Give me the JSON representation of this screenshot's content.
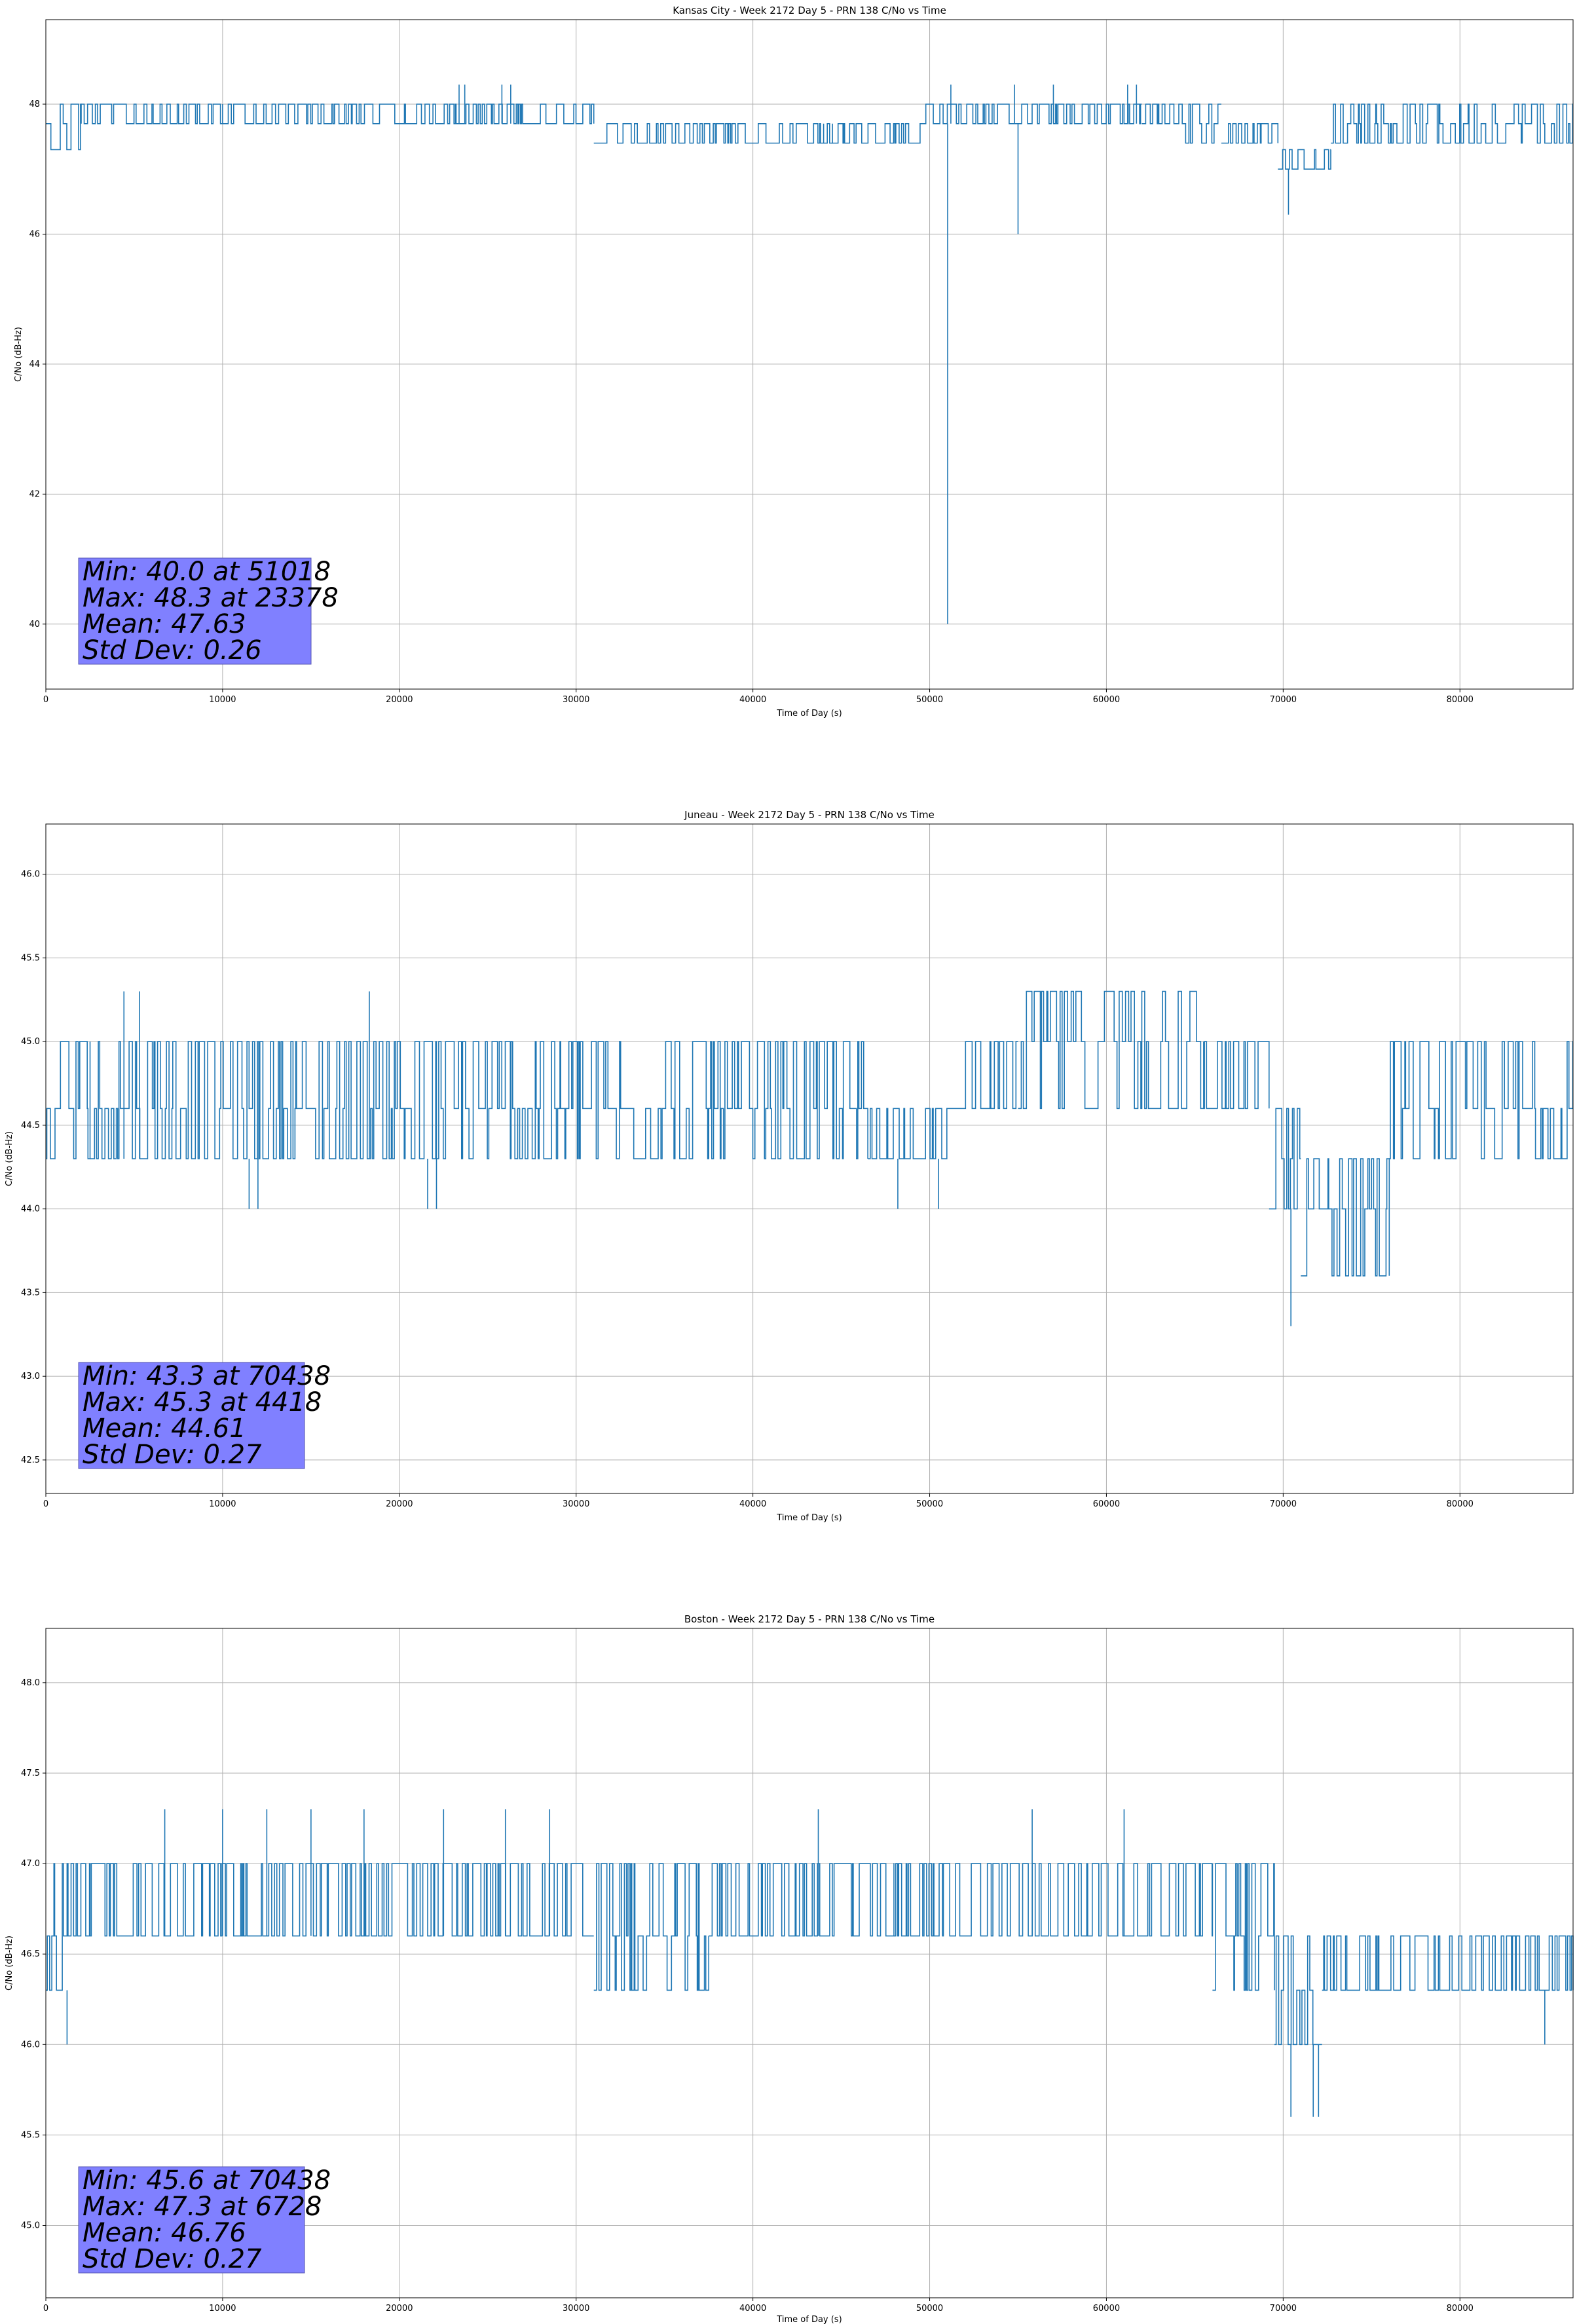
{
  "chart_data": [
    {
      "type": "line",
      "title": "Kansas City - Week 2172 Day 5 - PRN 138 C/No vs Time",
      "xlabel": "Time of Day (s)",
      "ylabel": "C/No (dB-Hz)",
      "xlim": [
        0,
        86400
      ],
      "ylim": [
        39.0,
        49.3
      ],
      "xticks": [
        0,
        10000,
        20000,
        30000,
        40000,
        50000,
        60000,
        70000,
        80000
      ],
      "yticks": [
        40,
        42,
        44,
        46,
        48
      ],
      "ytick_labels": [
        "40",
        "42",
        "44",
        "46",
        "48"
      ],
      "grid": true,
      "series_color": "#1f77b4",
      "segments": [
        {
          "x": [
            0,
            2000
          ],
          "levels": [
            47.7,
            48.0,
            47.3
          ]
        },
        {
          "x": [
            2000,
            10000
          ],
          "levels": [
            48.0,
            47.7
          ]
        },
        {
          "x": [
            10000,
            30000
          ],
          "levels": [
            47.7,
            48.0
          ]
        },
        {
          "x": [
            30000,
            31000
          ],
          "levels": [
            47.7,
            48.0
          ]
        },
        {
          "x": [
            31000,
            44000
          ],
          "levels": [
            47.4,
            47.7
          ]
        },
        {
          "x": [
            44000,
            44500
          ],
          "levels": [
            47.4,
            47.7
          ]
        },
        {
          "x": [
            44500,
            49500
          ],
          "levels": [
            47.4,
            47.7
          ]
        },
        {
          "x": [
            49500,
            62000
          ],
          "levels": [
            47.7,
            48.0
          ]
        },
        {
          "x": [
            62000,
            64000
          ],
          "levels": [
            47.7,
            48.0
          ]
        },
        {
          "x": [
            64000,
            66500
          ],
          "levels": [
            47.7,
            48.0,
            47.4
          ]
        },
        {
          "x": [
            66500,
            69700
          ],
          "levels": [
            47.4,
            47.7
          ]
        },
        {
          "x": [
            69700,
            72700
          ],
          "levels": [
            47.0,
            47.3
          ]
        },
        {
          "x": [
            72700,
            86400
          ],
          "levels": [
            47.4,
            47.7,
            48.0
          ]
        }
      ],
      "spikes": [
        {
          "x": 51018,
          "y": 40.0
        },
        {
          "x": 55000,
          "y": 46.0
        },
        {
          "x": 70300,
          "y": 46.3
        },
        {
          "x": 23378,
          "y": 48.3
        },
        {
          "x": 23700,
          "y": 48.3
        },
        {
          "x": 25800,
          "y": 48.3
        },
        {
          "x": 26300,
          "y": 48.3
        },
        {
          "x": 51200,
          "y": 48.3
        },
        {
          "x": 54800,
          "y": 48.3
        },
        {
          "x": 57000,
          "y": 48.3
        },
        {
          "x": 61200,
          "y": 48.3
        },
        {
          "x": 61700,
          "y": 48.3
        }
      ],
      "stats": {
        "min": "Min: 40.0 at 51018",
        "max": "Max: 48.3 at 23378",
        "mean": "Mean: 47.63",
        "std": "Std Dev: 0.26"
      }
    },
    {
      "type": "line",
      "title": "Juneau - Week 2172 Day 5 - PRN 138 C/No vs Time",
      "xlabel": "Time of Day (s)",
      "ylabel": "C/No (dB-Hz)",
      "xlim": [
        0,
        86400
      ],
      "ylim": [
        42.3,
        46.3
      ],
      "xticks": [
        0,
        10000,
        20000,
        30000,
        40000,
        50000,
        60000,
        70000,
        80000
      ],
      "yticks": [
        42.5,
        43.0,
        43.5,
        44.0,
        44.5,
        45.0,
        45.5,
        46.0
      ],
      "ytick_labels": [
        "42.5",
        "43.0",
        "43.5",
        "44.0",
        "44.5",
        "45.0",
        "45.5",
        "46.0"
      ],
      "grid": true,
      "series_color": "#1f77b4",
      "segments": [
        {
          "x": [
            0,
            2500
          ],
          "levels": [
            44.3,
            44.6,
            45.0
          ]
        },
        {
          "x": [
            2500,
            46500
          ],
          "levels": [
            44.3,
            44.6,
            45.0
          ]
        },
        {
          "x": [
            46500,
            51500
          ],
          "levels": [
            44.3,
            44.6
          ]
        },
        {
          "x": [
            51500,
            55000
          ],
          "levels": [
            44.6,
            45.0
          ]
        },
        {
          "x": [
            55000,
            65500
          ],
          "levels": [
            44.6,
            45.0,
            45.3
          ]
        },
        {
          "x": [
            65500,
            69200
          ],
          "levels": [
            44.6,
            45.0
          ]
        },
        {
          "x": [
            69200,
            71000
          ],
          "levels": [
            44.0,
            44.3,
            44.6
          ]
        },
        {
          "x": [
            71000,
            76000
          ],
          "levels": [
            43.6,
            44.0,
            44.3
          ]
        },
        {
          "x": [
            76000,
            86400
          ],
          "levels": [
            44.3,
            44.6,
            45.0
          ]
        }
      ],
      "spikes": [
        {
          "x": 70438,
          "y": 43.3
        },
        {
          "x": 4418,
          "y": 45.3
        },
        {
          "x": 5300,
          "y": 45.3
        },
        {
          "x": 18300,
          "y": 45.3
        },
        {
          "x": 11500,
          "y": 44.0
        },
        {
          "x": 12000,
          "y": 44.0
        },
        {
          "x": 21600,
          "y": 44.0
        },
        {
          "x": 22100,
          "y": 44.0
        },
        {
          "x": 48200,
          "y": 44.0
        },
        {
          "x": 50500,
          "y": 44.0
        }
      ],
      "stats": {
        "min": "Min: 43.3 at 70438",
        "max": "Max: 45.3 at 4418",
        "mean": "Mean: 44.61",
        "std": "Std Dev: 0.27"
      }
    },
    {
      "type": "line",
      "title": "Boston - Week 2172 Day 5 - PRN 138 C/No vs Time",
      "xlabel": "Time of Day (s)",
      "ylabel": "C/No (dB-Hz)",
      "xlim": [
        0,
        86400
      ],
      "ylim": [
        44.6,
        48.3
      ],
      "xticks": [
        0,
        10000,
        20000,
        30000,
        40000,
        50000,
        60000,
        70000,
        80000
      ],
      "yticks": [
        45.0,
        45.5,
        46.0,
        46.5,
        47.0,
        47.5,
        48.0
      ],
      "ytick_labels": [
        "45.0",
        "45.5",
        "46.0",
        "46.5",
        "47.0",
        "47.5",
        "48.0"
      ],
      "grid": true,
      "series_color": "#1f77b4",
      "segments": [
        {
          "x": [
            0,
            2500
          ],
          "levels": [
            46.3,
            46.6,
            47.0
          ]
        },
        {
          "x": [
            2500,
            31000
          ],
          "levels": [
            46.6,
            47.0
          ]
        },
        {
          "x": [
            31000,
            37500
          ],
          "levels": [
            46.3,
            46.6,
            47.0
          ]
        },
        {
          "x": [
            37500,
            48000
          ],
          "levels": [
            46.6,
            47.0
          ]
        },
        {
          "x": [
            48000,
            66000
          ],
          "levels": [
            46.6,
            47.0
          ]
        },
        {
          "x": [
            66000,
            69500
          ],
          "levels": [
            46.3,
            46.6,
            47.0
          ]
        },
        {
          "x": [
            69500,
            72200
          ],
          "levels": [
            46.0,
            46.3,
            46.6
          ]
        },
        {
          "x": [
            72200,
            86400
          ],
          "levels": [
            46.3,
            46.6
          ]
        }
      ],
      "spikes": [
        {
          "x": 70438,
          "y": 45.6
        },
        {
          "x": 71700,
          "y": 45.6
        },
        {
          "x": 72000,
          "y": 45.6
        },
        {
          "x": 1200,
          "y": 46.0
        },
        {
          "x": 84800,
          "y": 46.0
        },
        {
          "x": 6728,
          "y": 47.3
        },
        {
          "x": 10000,
          "y": 47.3
        },
        {
          "x": 12500,
          "y": 47.3
        },
        {
          "x": 15000,
          "y": 47.3
        },
        {
          "x": 18000,
          "y": 47.3
        },
        {
          "x": 22500,
          "y": 47.3
        },
        {
          "x": 26000,
          "y": 47.3
        },
        {
          "x": 28500,
          "y": 47.3
        },
        {
          "x": 43700,
          "y": 47.3
        },
        {
          "x": 55800,
          "y": 47.3
        },
        {
          "x": 61000,
          "y": 47.3
        }
      ],
      "stats": {
        "min": "Min: 45.6 at 70438",
        "max": "Max: 47.3 at 6728",
        "mean": "Mean: 46.76",
        "std": "Std Dev: 0.27"
      }
    }
  ]
}
